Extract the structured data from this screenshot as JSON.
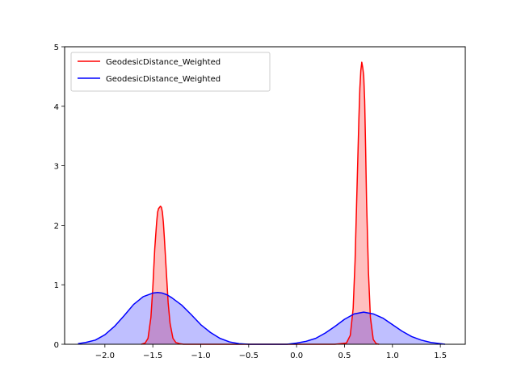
{
  "chart_data": {
    "type": "area",
    "title": "",
    "xlabel": "",
    "ylabel": "",
    "xlim": [
      -2.42,
      1.76
    ],
    "ylim": [
      0,
      5
    ],
    "xticks": [
      -2.0,
      -1.5,
      -1.0,
      -0.5,
      0.0,
      0.5,
      1.0,
      1.5
    ],
    "xtick_labels": [
      "−2.0",
      "−1.5",
      "−1.0",
      "−0.5",
      "0.0",
      "0.5",
      "1.0",
      "1.5"
    ],
    "yticks": [
      0,
      1,
      2,
      3,
      4,
      5
    ],
    "ytick_labels": [
      "0",
      "1",
      "2",
      "3",
      "4",
      "5"
    ],
    "grid": false,
    "legend_position": "top-left",
    "series": [
      {
        "name": "GeodesicDistance_Weighted",
        "color": "#ff0000",
        "fill": "#ffbfbf",
        "x": [
          -1.62,
          -1.58,
          -1.55,
          -1.52,
          -1.5,
          -1.48,
          -1.46,
          -1.45,
          -1.44,
          -1.43,
          -1.42,
          -1.41,
          -1.4,
          -1.39,
          -1.38,
          -1.36,
          -1.34,
          -1.32,
          -1.29,
          -1.26,
          -1.22,
          -1.18,
          -0.8,
          -0.4,
          0.0,
          0.4,
          0.52,
          0.56,
          0.59,
          0.61,
          0.63,
          0.65,
          0.66,
          0.67,
          0.68,
          0.69,
          0.7,
          0.71,
          0.72,
          0.73,
          0.75,
          0.77,
          0.8,
          0.83,
          0.86
        ],
        "y": [
          0.0,
          0.02,
          0.1,
          0.45,
          0.95,
          1.6,
          2.05,
          2.22,
          2.28,
          2.3,
          2.32,
          2.3,
          2.22,
          2.05,
          1.8,
          1.25,
          0.7,
          0.35,
          0.1,
          0.03,
          0.01,
          0.0,
          0.0,
          0.0,
          0.0,
          0.0,
          0.02,
          0.15,
          0.6,
          1.4,
          2.6,
          3.8,
          4.3,
          4.6,
          4.74,
          4.65,
          4.52,
          4.1,
          3.3,
          2.4,
          1.2,
          0.45,
          0.08,
          0.01,
          0.0
        ]
      },
      {
        "name": "GeodesicDistance_Weighted",
        "color": "#0000ff",
        "fill": "#bfbfff",
        "x": [
          -2.28,
          -2.2,
          -2.1,
          -2.0,
          -1.9,
          -1.8,
          -1.7,
          -1.6,
          -1.5,
          -1.45,
          -1.4,
          -1.35,
          -1.3,
          -1.2,
          -1.1,
          -1.0,
          -0.9,
          -0.8,
          -0.7,
          -0.6,
          -0.5,
          -0.4,
          -0.3,
          -0.2,
          -0.1,
          0.0,
          0.1,
          0.2,
          0.3,
          0.4,
          0.5,
          0.6,
          0.7,
          0.8,
          0.9,
          1.0,
          1.1,
          1.2,
          1.3,
          1.4,
          1.5,
          1.55
        ],
        "y": [
          0.01,
          0.03,
          0.07,
          0.16,
          0.3,
          0.48,
          0.67,
          0.8,
          0.86,
          0.87,
          0.86,
          0.83,
          0.78,
          0.66,
          0.5,
          0.33,
          0.2,
          0.1,
          0.04,
          0.01,
          0.0,
          0.0,
          0.0,
          0.0,
          0.0,
          0.02,
          0.05,
          0.1,
          0.19,
          0.3,
          0.42,
          0.51,
          0.54,
          0.51,
          0.44,
          0.33,
          0.22,
          0.13,
          0.07,
          0.03,
          0.01,
          0.0
        ]
      }
    ]
  }
}
